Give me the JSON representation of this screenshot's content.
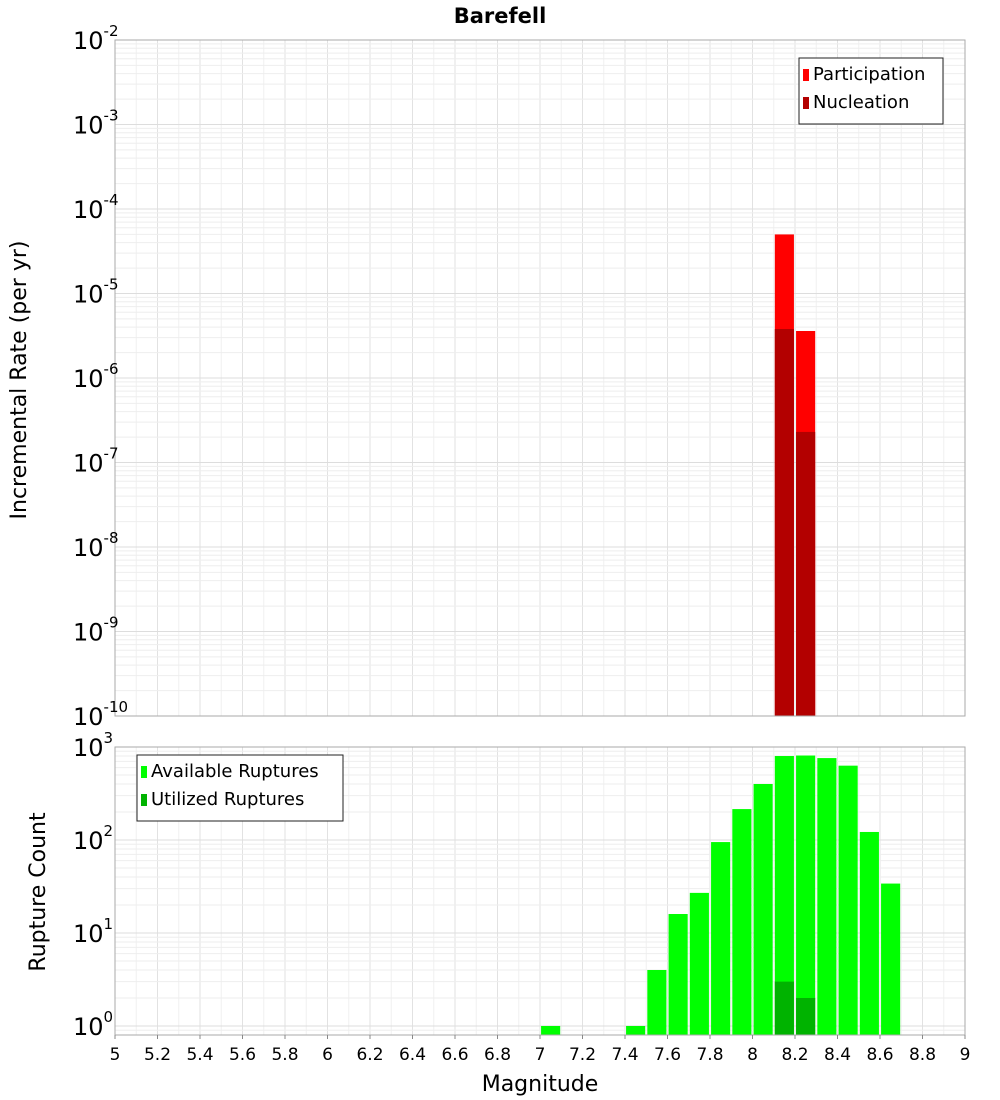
{
  "chart_data": [
    {
      "type": "bar",
      "title": "Barefell",
      "xlabel": "Magnitude",
      "ylabel": "Incremental Rate (per yr)",
      "y_scale": "log",
      "ylim": [
        1e-10,
        0.01
      ],
      "xlim": [
        5,
        9
      ],
      "y_tick_labels": [
        "10-10",
        "10-9",
        "10-8",
        "10-7",
        "10-6",
        "10-5",
        "10-4",
        "10-3",
        "10-2"
      ],
      "grid": true,
      "legend_position": "top-right",
      "series": [
        {
          "name": "Participation",
          "color": "#ff0000",
          "points": [
            {
              "x": 8.15,
              "y": 5e-05
            },
            {
              "x": 8.25,
              "y": 3.6e-06
            }
          ]
        },
        {
          "name": "Nucleation",
          "color": "#b30000",
          "points": [
            {
              "x": 8.15,
              "y": 3.8e-06
            },
            {
              "x": 8.25,
              "y": 2.3e-07
            }
          ]
        }
      ]
    },
    {
      "type": "bar",
      "xlabel": "Magnitude",
      "ylabel": "Rupture Count",
      "y_scale": "log",
      "ylim": [
        0.8,
        1000
      ],
      "xlim": [
        5,
        9
      ],
      "y_tick_labels": [
        "100",
        "101",
        "102",
        "103"
      ],
      "x_tick_labels": [
        "5",
        "5.2",
        "5.4",
        "5.6",
        "5.8",
        "6",
        "6.2",
        "6.4",
        "6.6",
        "6.8",
        "7",
        "7.2",
        "7.4",
        "7.6",
        "7.8",
        "8",
        "8.2",
        "8.4",
        "8.6",
        "8.8",
        "9"
      ],
      "grid": true,
      "legend_position": "top-left",
      "series": [
        {
          "name": "Available Ruptures",
          "color": "#00ff00",
          "points": [
            {
              "x": 7.05,
              "y": 1
            },
            {
              "x": 7.45,
              "y": 1
            },
            {
              "x": 7.55,
              "y": 4
            },
            {
              "x": 7.65,
              "y": 16
            },
            {
              "x": 7.75,
              "y": 27
            },
            {
              "x": 7.85,
              "y": 95
            },
            {
              "x": 7.95,
              "y": 215
            },
            {
              "x": 8.05,
              "y": 400
            },
            {
              "x": 8.15,
              "y": 800
            },
            {
              "x": 8.25,
              "y": 810
            },
            {
              "x": 8.35,
              "y": 760
            },
            {
              "x": 8.45,
              "y": 630
            },
            {
              "x": 8.55,
              "y": 122
            },
            {
              "x": 8.65,
              "y": 34
            }
          ]
        },
        {
          "name": "Utilized Ruptures",
          "color": "#00b300",
          "points": [
            {
              "x": 8.15,
              "y": 3
            },
            {
              "x": 8.25,
              "y": 2
            }
          ]
        }
      ]
    }
  ]
}
